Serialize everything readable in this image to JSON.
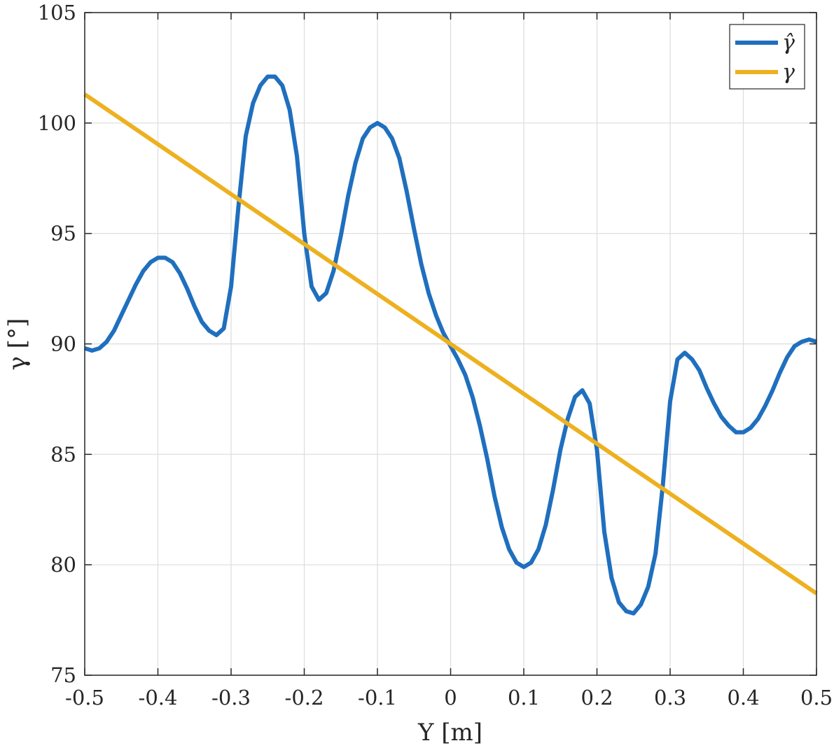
{
  "chart_data": {
    "type": "line",
    "xlabel": "Y  [m]",
    "ylabel": "γ [°]",
    "xlim": [
      -0.5,
      0.5
    ],
    "ylim": [
      75,
      105
    ],
    "xticks": [
      -0.5,
      -0.4,
      -0.3,
      -0.2,
      -0.1,
      0,
      0.1,
      0.2,
      0.3,
      0.4,
      0.5
    ],
    "xtick_labels": [
      "-0.5",
      "-0.4",
      "-0.3",
      "-0.2",
      "-0.1",
      "0",
      "0.1",
      "0.2",
      "0.3",
      "0.4",
      "0.5"
    ],
    "yticks": [
      75,
      80,
      85,
      90,
      95,
      100,
      105
    ],
    "ytick_labels": [
      "75",
      "80",
      "85",
      "90",
      "95",
      "100",
      "105"
    ],
    "grid": true,
    "legend_position": "top-right",
    "series": [
      {
        "name": "γ̂",
        "color": "#1f6fbe",
        "x": [
          -0.5,
          -0.49,
          -0.48,
          -0.47,
          -0.46,
          -0.45,
          -0.44,
          -0.43,
          -0.42,
          -0.41,
          -0.4,
          -0.39,
          -0.38,
          -0.37,
          -0.36,
          -0.35,
          -0.34,
          -0.33,
          -0.32,
          -0.31,
          -0.3,
          -0.29,
          -0.28,
          -0.27,
          -0.26,
          -0.25,
          -0.24,
          -0.23,
          -0.22,
          -0.21,
          -0.2,
          -0.19,
          -0.18,
          -0.17,
          -0.16,
          -0.15,
          -0.14,
          -0.13,
          -0.12,
          -0.11,
          -0.1,
          -0.09,
          -0.08,
          -0.07,
          -0.06,
          -0.05,
          -0.04,
          -0.03,
          -0.02,
          -0.01,
          0.0,
          0.01,
          0.02,
          0.03,
          0.04,
          0.05,
          0.06,
          0.07,
          0.08,
          0.09,
          0.1,
          0.11,
          0.12,
          0.13,
          0.14,
          0.15,
          0.16,
          0.17,
          0.18,
          0.19,
          0.2,
          0.21,
          0.22,
          0.23,
          0.24,
          0.25,
          0.26,
          0.27,
          0.28,
          0.29,
          0.3,
          0.31,
          0.32,
          0.33,
          0.34,
          0.35,
          0.36,
          0.37,
          0.38,
          0.39,
          0.4,
          0.41,
          0.42,
          0.43,
          0.44,
          0.45,
          0.46,
          0.47,
          0.48,
          0.49,
          0.5
        ],
        "values": [
          89.8,
          89.7,
          89.8,
          90.1,
          90.6,
          91.3,
          92.0,
          92.7,
          93.3,
          93.7,
          93.9,
          93.9,
          93.7,
          93.2,
          92.5,
          91.7,
          91.0,
          90.6,
          90.4,
          90.7,
          92.6,
          96.2,
          99.4,
          100.9,
          101.7,
          102.1,
          102.1,
          101.7,
          100.6,
          98.5,
          95.0,
          92.6,
          92.0,
          92.3,
          93.3,
          94.9,
          96.7,
          98.2,
          99.3,
          99.8,
          100.0,
          99.8,
          99.3,
          98.4,
          96.9,
          95.2,
          93.6,
          92.3,
          91.3,
          90.5,
          89.9,
          89.3,
          88.6,
          87.6,
          86.3,
          84.8,
          83.1,
          81.7,
          80.7,
          80.1,
          79.9,
          80.1,
          80.7,
          81.8,
          83.4,
          85.2,
          86.6,
          87.6,
          87.9,
          87.3,
          85.2,
          81.5,
          79.4,
          78.3,
          77.9,
          77.8,
          78.2,
          79.0,
          80.5,
          83.6,
          87.4,
          89.3,
          89.6,
          89.3,
          88.8,
          88.0,
          87.3,
          86.7,
          86.3,
          86.0,
          86.0,
          86.2,
          86.6,
          87.2,
          87.9,
          88.7,
          89.4,
          89.9,
          90.1,
          90.2,
          90.1
        ]
      },
      {
        "name": "γ",
        "color": "#edb120",
        "x": [
          -0.5,
          0.5
        ],
        "values": [
          101.3,
          78.7
        ]
      }
    ]
  }
}
